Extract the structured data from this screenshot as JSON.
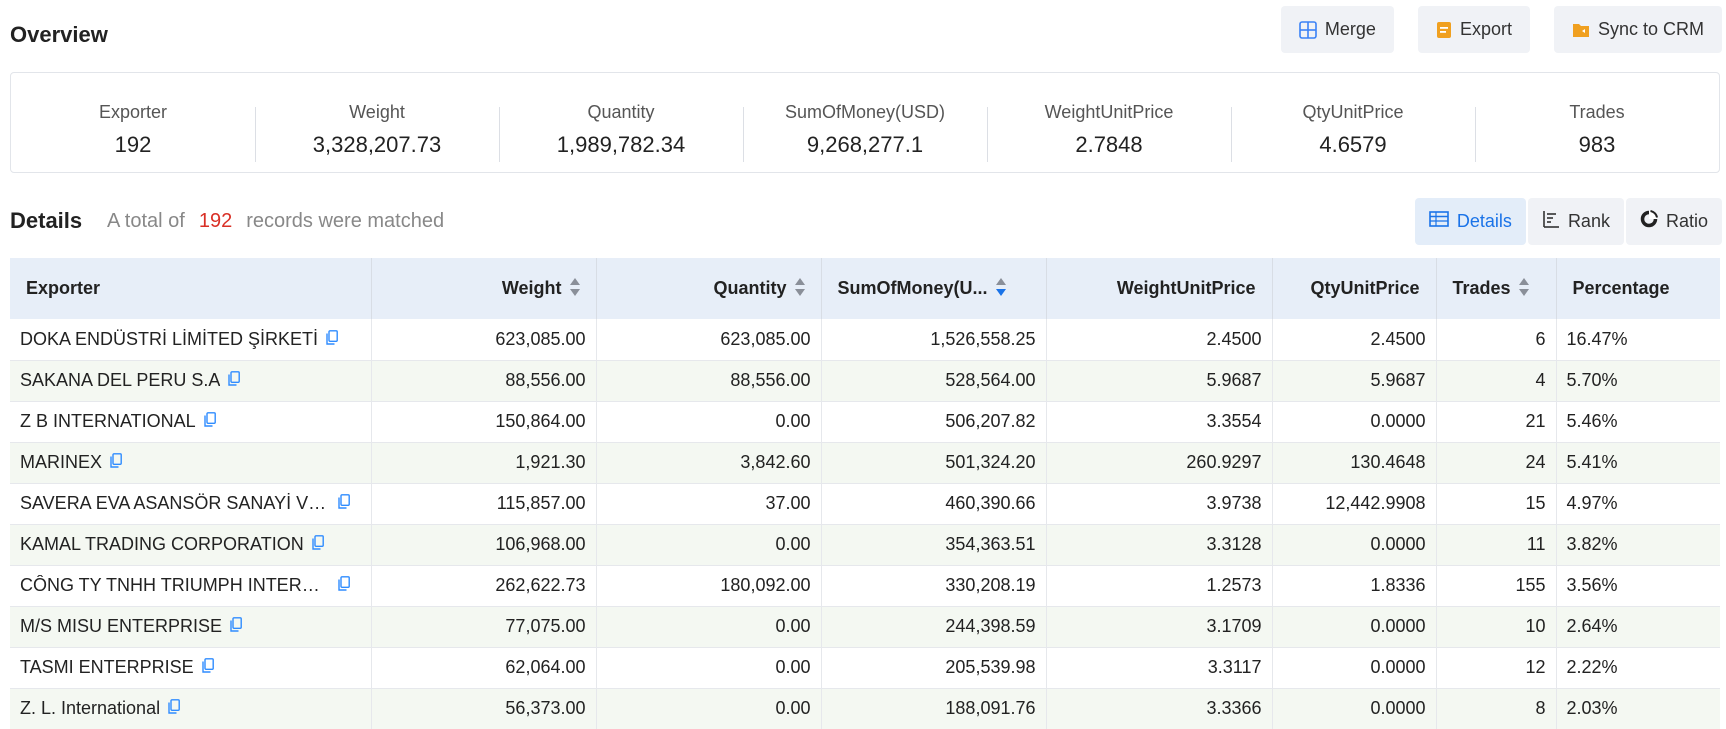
{
  "overview": {
    "title": "Overview",
    "actions": [
      {
        "label": "Merge",
        "icon": "merge-icon",
        "color": "#3b82f6"
      },
      {
        "label": "Export",
        "icon": "export-icon",
        "color": "#f0a020"
      },
      {
        "label": "Sync to CRM",
        "icon": "sync-crm-icon",
        "color": "#f0a020"
      }
    ],
    "stats": [
      {
        "label": "Exporter",
        "value": "192"
      },
      {
        "label": "Weight",
        "value": "3,328,207.73"
      },
      {
        "label": "Quantity",
        "value": "1,989,782.34"
      },
      {
        "label": "SumOfMoney(USD)",
        "value": "9,268,277.1"
      },
      {
        "label": "WeightUnitPrice",
        "value": "2.7848"
      },
      {
        "label": "QtyUnitPrice",
        "value": "4.6579"
      },
      {
        "label": "Trades",
        "value": "983"
      }
    ]
  },
  "details": {
    "title": "Details",
    "prefix": "A total of",
    "count": "192",
    "suffix": "records were matched",
    "tabs": [
      {
        "label": "Details",
        "icon": "table-icon",
        "active": true
      },
      {
        "label": "Rank",
        "icon": "rank-icon",
        "active": false
      },
      {
        "label": "Ratio",
        "icon": "pie-icon",
        "active": false
      }
    ]
  },
  "table": {
    "columns": [
      "Exporter",
      "Weight",
      "Quantity",
      "SumOfMoney(U...",
      "WeightUnitPrice",
      "QtyUnitPrice",
      "Trades",
      "Percentage"
    ],
    "rows": [
      [
        "DOKA ENDÜSTRİ LİMİTED ŞİRKETİ",
        "623,085.00",
        "623,085.00",
        "1,526,558.25",
        "2.4500",
        "2.4500",
        "6",
        "16.47%"
      ],
      [
        "SAKANA DEL PERU S.A",
        "88,556.00",
        "88,556.00",
        "528,564.00",
        "5.9687",
        "5.9687",
        "4",
        "5.70%"
      ],
      [
        "Z B INTERNATIONAL",
        "150,864.00",
        "0.00",
        "506,207.82",
        "3.3554",
        "0.0000",
        "21",
        "5.46%"
      ],
      [
        "MARINEX",
        "1,921.30",
        "3,842.60",
        "501,324.20",
        "260.9297",
        "130.4648",
        "24",
        "5.41%"
      ],
      [
        "SAVERA EVA ASANSÖR SANAYİ VE T...",
        "115,857.00",
        "37.00",
        "460,390.66",
        "3.9738",
        "12,442.9908",
        "15",
        "4.97%"
      ],
      [
        "KAMAL TRADING CORPORATION",
        "106,968.00",
        "0.00",
        "354,363.51",
        "3.3128",
        "0.0000",
        "11",
        "3.82%"
      ],
      [
        "CÔNG TY TNHH TRIUMPH INTERNA...",
        "262,622.73",
        "180,092.00",
        "330,208.19",
        "1.2573",
        "1.8336",
        "155",
        "3.56%"
      ],
      [
        "M/S MISU ENTERPRISE",
        "77,075.00",
        "0.00",
        "244,398.59",
        "3.1709",
        "0.0000",
        "10",
        "2.64%"
      ],
      [
        "TASMI ENTERPRISE",
        "62,064.00",
        "0.00",
        "205,539.98",
        "3.3117",
        "0.0000",
        "12",
        "2.22%"
      ],
      [
        "Z. L. International",
        "56,373.00",
        "0.00",
        "188,091.76",
        "3.3366",
        "0.0000",
        "8",
        "2.03%"
      ]
    ]
  }
}
